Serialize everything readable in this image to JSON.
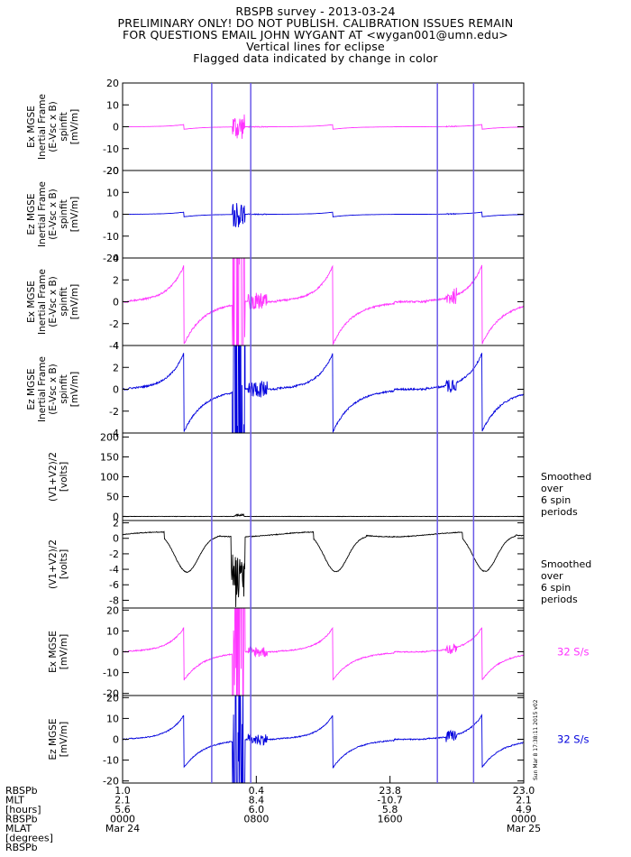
{
  "header": {
    "lines": [
      "RBSPB survey - 2013-03-24",
      "PRELIMINARY ONLY! DO NOT PUBLISH. CALIBRATION ISSUES REMAIN",
      "FOR QUESTIONS EMAIL JOHN WYGANT AT <wygan001@umn.edu>",
      "Vertical lines for eclipse",
      "Flagged data indicated by change in color"
    ]
  },
  "colors": {
    "magenta": "#ff33ff",
    "blue": "#0000dd",
    "black": "#000000",
    "eclipse": "#6a5ae8"
  },
  "side_stamp": "Sun Mar  8 17:38:11 2015 v02",
  "chart_data": {
    "type": "line",
    "time_axis": {
      "start": "2013-03-24 00:00",
      "end": "2013-03-25 00:00"
    },
    "eclipse_times_hhmm": [
      "05:20",
      "07:40",
      "18:50",
      "21:00"
    ],
    "panels": [
      {
        "id": "p1",
        "ylabel": [
          "Ex MGSE",
          "Inertial Frame",
          "(E-Vsc x B)",
          "spinfit",
          "[mV/m]"
        ],
        "ylim": [
          -20,
          20
        ],
        "ticks": [
          -20,
          -10,
          0,
          10,
          20
        ],
        "color": "magenta",
        "kind": "efield",
        "scale": 0.3,
        "annotation": ""
      },
      {
        "id": "p2",
        "ylabel": [
          "Ez MGSE",
          "Inertial Frame",
          "(E-Vsc x B)",
          "spinfit",
          "[mV/m]"
        ],
        "ylim": [
          -20,
          20
        ],
        "ticks": [
          -20,
          -10,
          0,
          10,
          20
        ],
        "color": "blue",
        "kind": "efield",
        "scale": 0.3,
        "annotation": ""
      },
      {
        "id": "p3",
        "ylabel": [
          "Ex MGSE",
          "Inertial Frame",
          "(E-Vsc x B)",
          "spinfit",
          "[mV/m]"
        ],
        "ylim": [
          -4,
          4
        ],
        "ticks": [
          -4,
          -2,
          0,
          2,
          4
        ],
        "color": "magenta",
        "kind": "efield",
        "scale": 1.0,
        "annotation": ""
      },
      {
        "id": "p4",
        "ylabel": [
          "Ez MGSE",
          "Inertial Frame",
          "(E-Vsc x B)",
          "spinfit",
          "[mV/m]"
        ],
        "ylim": [
          -4,
          4
        ],
        "ticks": [
          -4,
          -2,
          0,
          2,
          4
        ],
        "color": "blue",
        "kind": "efield",
        "scale": 1.0,
        "annotation": ""
      },
      {
        "id": "p5",
        "ylabel": [
          "(V1+V2)/2",
          "[volts]"
        ],
        "ylim": [
          -10,
          210
        ],
        "ticks": [
          0,
          50,
          100,
          150,
          200
        ],
        "color": "black",
        "kind": "flat",
        "scale": 1.0,
        "annotation": [
          "Smoothed",
          "over",
          "6 spin",
          "periods"
        ]
      },
      {
        "id": "p6",
        "ylabel": [
          "(V1+V2)/2",
          "[volts]"
        ],
        "ylim": [
          -9,
          2.3
        ],
        "ticks": [
          -8,
          -6,
          -4,
          -2,
          0,
          2
        ],
        "color": "black",
        "kind": "potential",
        "scale": 1.0,
        "annotation": [
          "Smoothed",
          "over",
          "6 spin",
          "periods"
        ]
      },
      {
        "id": "p7",
        "ylabel": [
          "Ex MGSE",
          "[mV/m]"
        ],
        "ylim": [
          -21,
          21
        ],
        "ticks": [
          -20,
          -10,
          0,
          10,
          20
        ],
        "color": "magenta",
        "kind": "efield",
        "scale": 3.5,
        "annotation": [
          "32 S/s"
        ]
      },
      {
        "id": "p8",
        "ylabel": [
          "Ez MGSE",
          "[mV/m]"
        ],
        "ylim": [
          -21,
          21
        ],
        "ticks": [
          -20,
          -10,
          0,
          10,
          20
        ],
        "color": "blue",
        "kind": "efield",
        "scale": 3.5,
        "annotation": [
          "32 S/s"
        ]
      }
    ],
    "xaxis_rows": [
      {
        "label": "RBSPb",
        "values": [
          "1.0",
          "0.4",
          "23.8",
          "23.0"
        ]
      },
      {
        "label": "MLT",
        "values": [
          "2.1",
          "8.4",
          "-10.7",
          "2.1"
        ]
      },
      {
        "label": "[hours]",
        "values": [
          "5.6",
          "6.0",
          "5.8",
          "4.9"
        ]
      },
      {
        "label": "RBSPb",
        "values": [
          "0000",
          "0800",
          "1600",
          "0000"
        ]
      },
      {
        "label": "MLAT",
        "values": [
          "Mar 24",
          "",
          "",
          "Mar 25"
        ]
      },
      {
        "label": "[degrees]",
        "values": [
          "",
          "",
          "",
          ""
        ]
      },
      {
        "label": "RBSPb",
        "values": [
          "",
          "",
          "",
          ""
        ]
      }
    ]
  }
}
